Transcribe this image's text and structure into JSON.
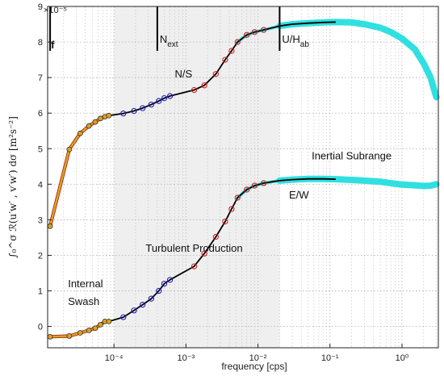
{
  "chart_data": {
    "type": "line",
    "xlabel": "frequency [cps]",
    "ylabel": "∫₀^σ ℛ(u′w′ , v′w′) dσ   [m²s⁻²]",
    "y_multiplier": "×10⁻⁵",
    "x_scale": "log",
    "xlim": [
      1.2e-05,
      3.2
    ],
    "ylim": [
      -0.6,
      9.0
    ],
    "x_ticks": [
      0.0001,
      0.001,
      0.01,
      0.1,
      1
    ],
    "x_tick_labels": [
      "10⁻⁴",
      "10⁻³",
      "10⁻²",
      "10⁻¹",
      "10⁰"
    ],
    "y_ticks": [
      0,
      1,
      2,
      3,
      4,
      5,
      6,
      7,
      8,
      9
    ],
    "y_tick_labels": [
      "0",
      "1",
      "2",
      "3",
      "4",
      "5",
      "6",
      "7",
      "8",
      "9"
    ],
    "grid": true,
    "shaded_band": {
      "x_start": 0.0001,
      "x_end": 0.02,
      "color": "#efefef"
    },
    "vertical_markers": [
      {
        "label": "f",
        "x": 1.3e-05
      },
      {
        "label": "N",
        "subscript": "ext",
        "x": 0.0004
      },
      {
        "label": "U/H",
        "subscript": "ab",
        "x": 0.02
      }
    ],
    "region_labels": [
      {
        "text": "Internal",
        "x": 2.3e-05,
        "y": 1.1
      },
      {
        "text": "Swash",
        "x": 2.3e-05,
        "y": 0.6
      },
      {
        "text": "Turbulent Production",
        "x": 0.0013,
        "y": 2.1
      },
      {
        "text": "Inertial Subrange",
        "x": 0.2,
        "y": 4.7
      }
    ],
    "series_labels": [
      {
        "text": "N/S",
        "x": 0.0007,
        "y": 7.0
      },
      {
        "text": "E/W",
        "x": 0.027,
        "y": 3.6
      }
    ],
    "colors": {
      "internal": "#e0a020",
      "internal_edge": "#a02010",
      "marker_blue": "#2020c0",
      "marker_red": "#d02020",
      "inertial": "#30e0e0",
      "line": "#000000",
      "grid": "#bbbbbb",
      "band": "#efefef"
    },
    "series": [
      {
        "name": "N/S",
        "points": [
          [
            1.3e-05,
            2.82
          ],
          [
            2.4e-05,
            4.98
          ],
          [
            3.4e-05,
            5.43
          ],
          [
            4.5e-05,
            5.64
          ],
          [
            5.5e-05,
            5.75
          ],
          [
            6.5e-05,
            5.85
          ],
          [
            7.5e-05,
            5.9
          ],
          [
            8.5e-05,
            5.93
          ],
          [
            0.000135,
            5.99
          ],
          [
            0.00019,
            6.06
          ],
          [
            0.00025,
            6.14
          ],
          [
            0.00033,
            6.24
          ],
          [
            0.00042,
            6.34
          ],
          [
            0.0005,
            6.42
          ],
          [
            0.0006,
            6.48
          ],
          [
            0.0013,
            6.65
          ],
          [
            0.0018,
            6.78
          ],
          [
            0.0026,
            7.1
          ],
          [
            0.0035,
            7.5
          ],
          [
            0.0043,
            7.75
          ],
          [
            0.0052,
            8.0
          ],
          [
            0.007,
            8.2
          ],
          [
            0.009,
            8.28
          ],
          [
            0.012,
            8.34
          ],
          [
            0.016,
            8.4
          ],
          [
            0.02,
            8.45
          ],
          [
            0.03,
            8.5
          ],
          [
            0.05,
            8.53
          ],
          [
            0.08,
            8.55
          ],
          [
            0.12,
            8.56
          ],
          [
            0.2,
            8.55
          ],
          [
            0.3,
            8.5
          ],
          [
            0.5,
            8.4
          ],
          [
            0.7,
            8.28
          ],
          [
            1.0,
            8.1
          ],
          [
            1.5,
            7.8
          ],
          [
            2.0,
            7.4
          ],
          [
            2.5,
            7.0
          ],
          [
            3.0,
            6.45
          ]
        ]
      },
      {
        "name": "E/W",
        "points": [
          [
            1.3e-05,
            -0.29
          ],
          [
            2.4e-05,
            -0.27
          ],
          [
            3.4e-05,
            -0.18
          ],
          [
            4.5e-05,
            -0.11
          ],
          [
            5.5e-05,
            -0.05
          ],
          [
            6.5e-05,
            0.05
          ],
          [
            7.5e-05,
            0.14
          ],
          [
            8.5e-05,
            0.14
          ],
          [
            0.000135,
            0.26
          ],
          [
            0.00019,
            0.45
          ],
          [
            0.00025,
            0.61
          ],
          [
            0.00033,
            0.78
          ],
          [
            0.00042,
            1.0
          ],
          [
            0.0005,
            1.2
          ],
          [
            0.0006,
            1.31
          ],
          [
            0.0013,
            1.69
          ],
          [
            0.0018,
            2.05
          ],
          [
            0.0026,
            2.52
          ],
          [
            0.0035,
            2.95
          ],
          [
            0.0043,
            3.3
          ],
          [
            0.0052,
            3.62
          ],
          [
            0.007,
            3.85
          ],
          [
            0.009,
            3.96
          ],
          [
            0.012,
            4.03
          ],
          [
            0.016,
            4.07
          ],
          [
            0.02,
            4.1
          ],
          [
            0.03,
            4.13
          ],
          [
            0.05,
            4.15
          ],
          [
            0.08,
            4.15
          ],
          [
            0.12,
            4.14
          ],
          [
            0.2,
            4.12
          ],
          [
            0.3,
            4.1
          ],
          [
            0.5,
            4.07
          ],
          [
            0.7,
            4.03
          ],
          [
            1.0,
            3.99
          ],
          [
            1.5,
            3.97
          ],
          [
            2.0,
            3.95
          ],
          [
            2.5,
            3.96
          ],
          [
            3.0,
            4.0
          ]
        ]
      }
    ]
  }
}
